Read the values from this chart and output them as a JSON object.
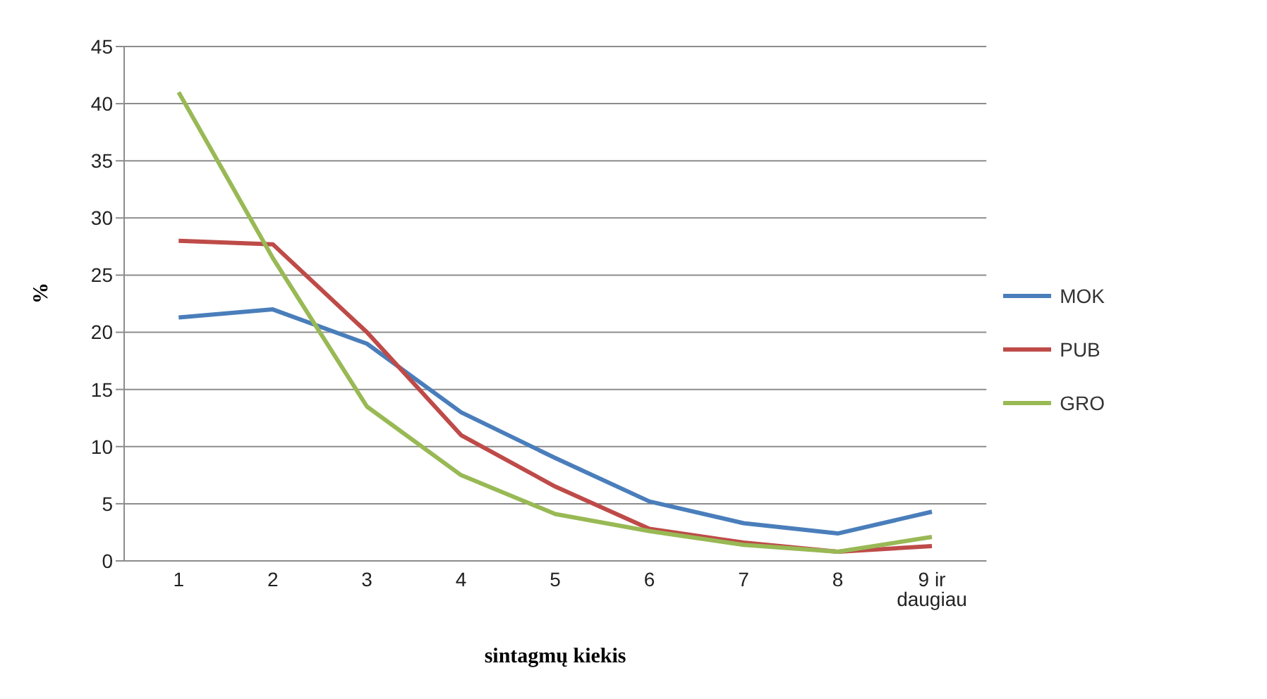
{
  "chart_data": {
    "type": "line",
    "xlabel": "sintagmų kiekis",
    "ylabel": "%",
    "categories": [
      "1",
      "2",
      "3",
      "4",
      "5",
      "6",
      "7",
      "8",
      "9 ir daugiau"
    ],
    "series": [
      {
        "name": "MOK",
        "color": "#4a7ebb",
        "values": [
          21.3,
          22.0,
          19.0,
          13.0,
          9.0,
          5.2,
          3.3,
          2.4,
          4.3
        ]
      },
      {
        "name": "PUB",
        "color": "#be4b48",
        "values": [
          28.0,
          27.7,
          20.0,
          11.0,
          6.5,
          2.8,
          1.6,
          0.8,
          1.3
        ]
      },
      {
        "name": "GRO",
        "color": "#98b954",
        "values": [
          41.0,
          26.5,
          13.5,
          7.5,
          4.1,
          2.6,
          1.4,
          0.8,
          2.1
        ]
      }
    ],
    "ylim": [
      0,
      45
    ],
    "yticks": [
      0,
      5,
      10,
      15,
      20,
      25,
      30,
      35,
      40,
      45
    ],
    "grid": "y",
    "legend": "right",
    "marker": "none",
    "line_style": "solid"
  }
}
